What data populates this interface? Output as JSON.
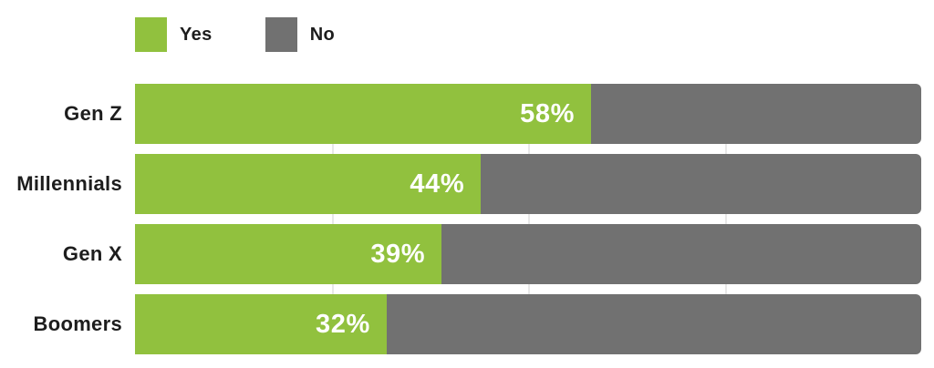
{
  "chart_data": {
    "type": "bar",
    "orientation": "horizontal-stacked",
    "title": "",
    "categories": [
      "Gen Z",
      "Millennials",
      "Gen X",
      "Boomers"
    ],
    "series": [
      {
        "name": "Yes",
        "color": "#91C13E",
        "values": [
          58,
          44,
          39,
          32
        ]
      },
      {
        "name": "No",
        "color": "#717171",
        "values": [
          42,
          56,
          61,
          68
        ]
      }
    ],
    "data_labels": [
      "58%",
      "44%",
      "39%",
      "32%"
    ],
    "xlabel": "",
    "ylabel": "",
    "xlim": [
      0,
      100
    ],
    "gridlines_pct": [
      25,
      50,
      75
    ],
    "grid": "faint vertical lines visible between bars",
    "legend_position": "top-left",
    "background_color": "#FFFFFF",
    "value_label_color": "#FFFFFF",
    "text_color": "#1D1D1D"
  }
}
